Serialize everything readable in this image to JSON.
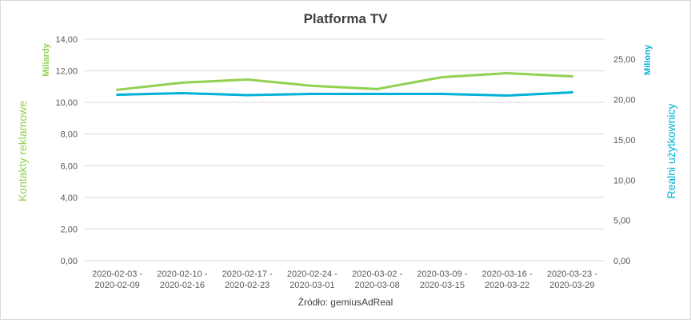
{
  "chart_data": {
    "type": "line",
    "title": "Platforma TV",
    "categories": [
      [
        "2020-02-03 -",
        "2020-02-09"
      ],
      [
        "2020-02-10 -",
        "2020-02-16"
      ],
      [
        "2020-02-17 -",
        "2020-02-23"
      ],
      [
        "2020-02-24 -",
        "2020-03-01"
      ],
      [
        "2020-03-02 -",
        "2020-03-08"
      ],
      [
        "2020-03-09 -",
        "2020-03-15"
      ],
      [
        "2020-03-16 -",
        "2020-03-22"
      ],
      [
        "2020-03-23 -",
        "2020-03-29"
      ]
    ],
    "y_left": {
      "label": "Kontakty reklamowe",
      "unit": "Miliardy",
      "ylim": [
        0,
        14
      ],
      "ticks": [
        "0,00",
        "2,00",
        "4,00",
        "6,00",
        "8,00",
        "10,00",
        "12,00",
        "14,00"
      ],
      "color": "#92d050"
    },
    "y_right": {
      "label": "Realni użytkownicy",
      "unit": "Miliony",
      "ylim": [
        0,
        27.5
      ],
      "ticks": [
        "0,00",
        "5,00",
        "10,00",
        "15,00",
        "20,00",
        "25,00"
      ],
      "color": "#00b0d8"
    },
    "series": [
      {
        "axis": "left",
        "color": "#92d050",
        "values": [
          10.8,
          11.25,
          11.45,
          11.05,
          10.85,
          11.6,
          11.85,
          11.65
        ]
      },
      {
        "axis": "right",
        "color": "#00b0d8",
        "values": [
          20.6,
          20.8,
          20.55,
          20.7,
          20.7,
          20.7,
          20.5,
          20.9
        ]
      }
    ],
    "grid": true,
    "source": "Źródło: gemiusAdReal"
  }
}
